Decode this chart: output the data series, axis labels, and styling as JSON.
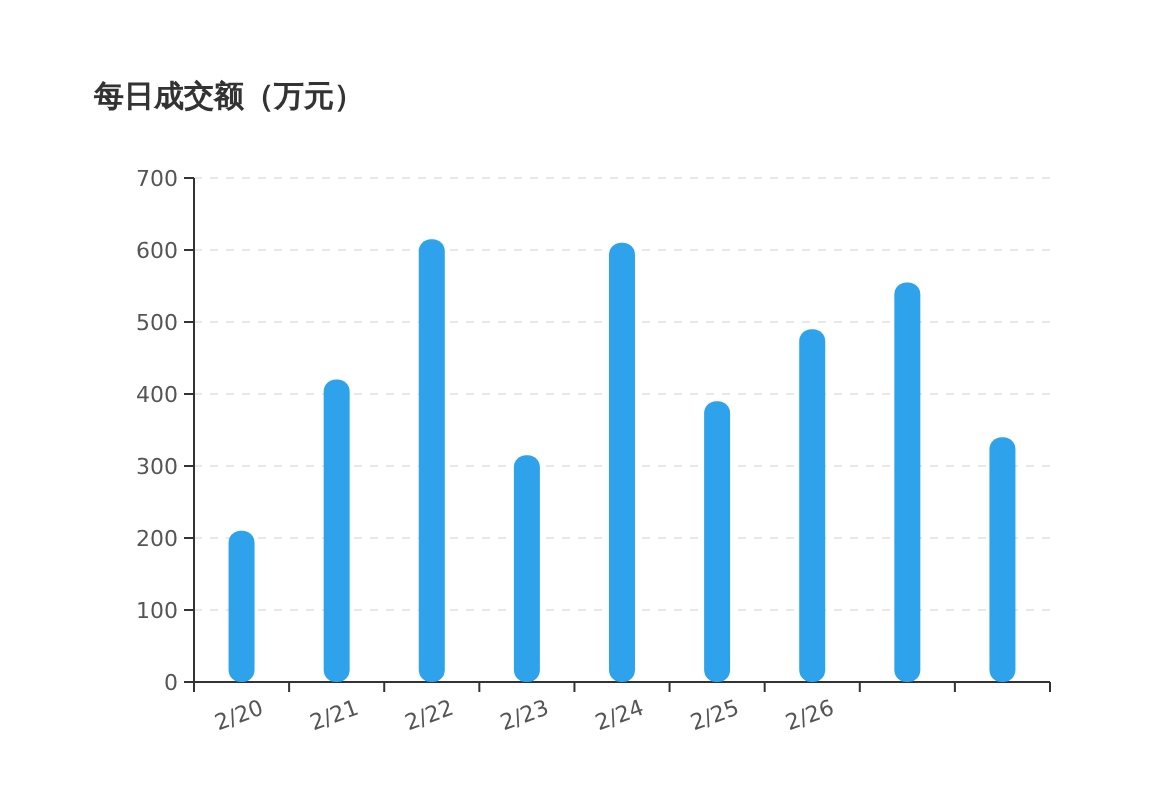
{
  "chart_data": {
    "type": "bar",
    "title": "每日成交额（万元）",
    "categories": [
      "2/20",
      "2/21",
      "2/22",
      "2/23",
      "2/24",
      "2/25",
      "2/26",
      null,
      null
    ],
    "values": [
      210,
      420,
      615,
      315,
      610,
      390,
      490,
      555,
      340
    ],
    "color": "#2ea3ec",
    "ylim": [
      0,
      700
    ],
    "yticks": [
      0,
      100,
      200,
      300,
      400,
      500,
      600,
      700
    ],
    "grid": "y"
  }
}
